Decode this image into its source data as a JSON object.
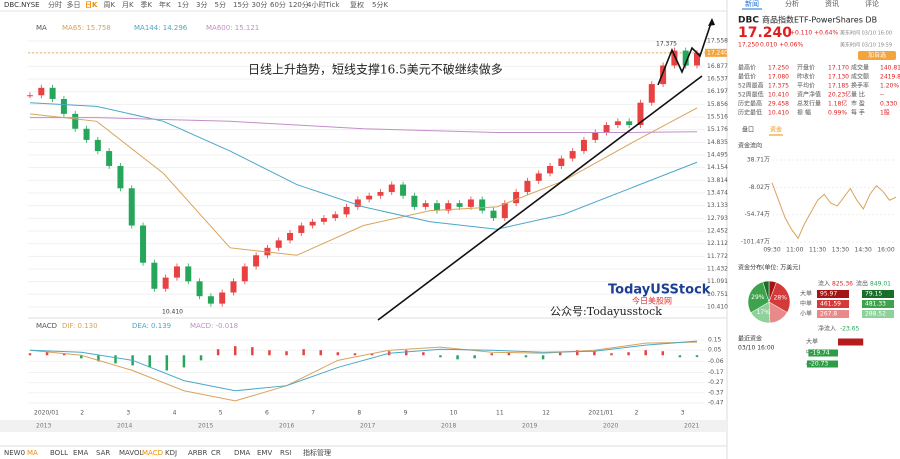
{
  "toolbar": {
    "symbol": "DBC.NYSE",
    "periods": [
      "分时",
      "多日",
      "日K",
      "周K",
      "月K",
      "季K",
      "年K",
      "1分",
      "3分",
      "5分",
      "15分",
      "30分",
      "60分",
      "120分",
      "4小时",
      "Tick"
    ],
    "active": 2,
    "adjust": "复权",
    "kperiod": "5分K"
  },
  "chart": {
    "ma_title": "MA",
    "annotation": "日线上升趋势，短线支撑16.5美元不破继续做多",
    "high_label": "17.375",
    "low_label": "10.410",
    "ylim": [
      10.41,
      17.558
    ],
    "yticks": [
      17.558,
      {
        "value": 17.24,
        "label": "17.240"
      },
      16.877,
      16.537,
      16.197,
      15.856,
      15.516,
      15.176,
      14.835,
      14.495,
      14.154,
      13.814,
      13.474,
      13.133,
      12.793,
      12.452,
      12.112,
      11.772,
      11.432,
      11.091,
      10.751,
      {
        "value": 10.41,
        "label": "10.410"
      }
    ],
    "candles": {
      "up_color": "#e84141",
      "down_color": "#26a65b",
      "close": [
        16.1,
        16.3,
        16.0,
        15.6,
        15.2,
        14.9,
        14.6,
        14.2,
        13.6,
        12.6,
        11.6,
        10.9,
        11.2,
        11.5,
        11.1,
        10.7,
        10.5,
        10.8,
        11.1,
        11.5,
        11.8,
        12.0,
        12.2,
        12.4,
        12.6,
        12.7,
        12.8,
        12.9,
        13.1,
        13.3,
        13.4,
        13.5,
        13.7,
        13.4,
        13.1,
        13.2,
        13.0,
        13.2,
        13.1,
        13.3,
        13.0,
        12.8,
        13.2,
        13.5,
        13.8,
        14.0,
        14.2,
        14.4,
        14.6,
        14.9,
        15.1,
        15.3,
        15.4,
        15.3,
        15.9,
        16.4,
        16.9,
        17.3,
        16.9,
        17.24
      ]
    },
    "ma": [
      {
        "label": "MA65: 15.758",
        "color": "#d9a35b",
        "values": [
          15.6,
          15.4,
          14.0,
          12.0,
          11.8,
          12.6,
          13.0,
          13.1,
          13.8,
          14.8,
          15.76
        ]
      },
      {
        "label": "MA144: 14.296",
        "color": "#4aa8c8",
        "values": [
          15.9,
          15.8,
          15.4,
          14.6,
          13.7,
          13.1,
          12.7,
          12.5,
          12.9,
          13.6,
          14.3
        ]
      },
      {
        "label": "MA600: 15.121",
        "color": "#c38fc8",
        "values": [
          15.5,
          15.5,
          15.45,
          15.4,
          15.3,
          15.2,
          15.15,
          15.1,
          15.1,
          15.1,
          15.12
        ]
      }
    ],
    "dates": [
      "2020/01",
      "2",
      "3",
      "4",
      "5",
      "6",
      "7",
      "8",
      "9",
      "10",
      "11",
      "12",
      "2021/01",
      "2",
      "3"
    ],
    "years": [
      "2013",
      "2014",
      "2015",
      "2016",
      "2017",
      "2018",
      "2019",
      "2020",
      "2021"
    ]
  },
  "watermark": {
    "brand": "TodayUSStock",
    "sub": "今日美股网",
    "wechat": "公众号:Todayusstock"
  },
  "macd": {
    "label": "MACD",
    "dif": "DIF: 0.130",
    "dea": "DEA: 0.139",
    "macd": "MACD: -0.018",
    "ylim": [
      -0.52,
      0.2
    ],
    "yticks": [
      0.15,
      0.05,
      -0.06,
      -0.17,
      -0.27,
      -0.37,
      -0.47
    ],
    "hist": [
      0.02,
      0.03,
      0.02,
      -0.03,
      -0.06,
      -0.08,
      -0.1,
      -0.12,
      -0.15,
      -0.12,
      -0.05,
      0.06,
      0.09,
      0.08,
      0.05,
      0.04,
      0.06,
      0.05,
      0.03,
      0.02,
      0.02,
      0.04,
      0.05,
      0.03,
      -0.02,
      -0.04,
      -0.03,
      0.02,
      0.03,
      -0.02,
      -0.04,
      0.03,
      0.05,
      0.04,
      0.02,
      0.03,
      0.05,
      0.04,
      -0.02,
      -0.018
    ],
    "dif_line": [
      0.05,
      0.0,
      -0.15,
      -0.35,
      -0.45,
      -0.3,
      -0.05,
      0.05,
      0.08,
      0.03,
      0.02,
      0.05,
      0.12,
      0.13
    ],
    "dea_line": [
      0.05,
      0.03,
      -0.05,
      -0.25,
      -0.35,
      -0.3,
      -0.12,
      0.02,
      0.06,
      0.05,
      0.03,
      0.04,
      0.1,
      0.139
    ]
  },
  "bottom_tabs": [
    "NEW0",
    "MA",
    "BOLL",
    "EMA",
    "SAR",
    "MAVOL",
    "MACD",
    "KDJ",
    "ARBR",
    "CR",
    "DMA",
    "EMV",
    "RSI",
    "指标管理"
  ],
  "bottom_active": 6,
  "quote": {
    "tabs": [
      "新闻",
      "分析",
      "资讯",
      "评论"
    ],
    "code": "DBC",
    "name": "商品指数ETF-PowerShares DB",
    "price": "17.240",
    "change": "+0.110 +0.64%",
    "after": "17.250",
    "after_change": "0.010 +0.06%",
    "time1": "美东时间 03/10 16:00",
    "time2": "美东时间 03/10 19:59",
    "add": "加自选",
    "stats": [
      [
        "最高价",
        "17.250",
        "开盘价",
        "17.170",
        "成交量",
        "140.81万"
      ],
      [
        "最低价",
        "17.080",
        "昨收价",
        "17.130",
        "成交额",
        "2419.82万"
      ],
      [
        "52周最高",
        "17.375",
        "平均价",
        "17.185",
        "换手率",
        "1.20%"
      ],
      [
        "52周最低",
        "10.410",
        "资产净值",
        "20.23亿",
        "量 比",
        "--"
      ],
      [
        "历史最高",
        "29.458",
        "总发行量",
        "1.18亿",
        "市 盈",
        "0.330"
      ],
      [
        "历史最低",
        "10.410",
        "振 幅",
        "0.99%",
        "每 手",
        "1股"
      ]
    ],
    "subtabs": [
      "盘口",
      "资金"
    ]
  },
  "flow": {
    "title": "资金流向",
    "ylim": [
      -101.47,
      38.71
    ],
    "yticks": [
      {
        "value": 38.71,
        "label": "38.71万"
      },
      {
        "value": -8.02,
        "label": "-8.02万"
      },
      {
        "value": -54.74,
        "label": "-54.74万"
      },
      {
        "value": -101.47,
        "label": "-101.47万"
      }
    ],
    "xlabels": [
      "09:30",
      "11:00",
      "11:30",
      "13:30",
      "14:30",
      "16:00"
    ],
    "color": "#d9a35b",
    "values": [
      0,
      -30,
      -60,
      -80,
      -95,
      -70,
      -50,
      -30,
      -20,
      -35,
      -40,
      -25,
      -10,
      -30,
      -45,
      -20,
      -5,
      -15,
      -30,
      -25
    ]
  },
  "dist": {
    "title": "资金分布(单位: 万美元)",
    "in_label": "流入",
    "in_total": "825.36",
    "out_label": "流出",
    "out_total": "849.01",
    "rows": [
      {
        "name": "大单",
        "in": 95.97,
        "out": 79.15
      },
      {
        "name": "中单",
        "in": 461.59,
        "out": 481.33,
        "in_pct": "28%",
        "out_pct": "29%"
      },
      {
        "name": "小单",
        "in": 267.8,
        "out": 288.52,
        "out_pct": "17%"
      }
    ],
    "in_colors": [
      "#a31515",
      "#d43a3a",
      "#e88a8a"
    ],
    "out_colors": [
      "#1b6e2a",
      "#3fa34d",
      "#8fd19a"
    ]
  },
  "net": {
    "label": "净流入",
    "value": "-23.65"
  },
  "recent": {
    "title": "最近资金",
    "time": "03/10 16:00",
    "rows": [
      {
        "name": "大单",
        "value": 16.82
      },
      {
        "name": "中单",
        "value": -19.74
      },
      {
        "name": "小单",
        "value": -20.73
      }
    ]
  }
}
